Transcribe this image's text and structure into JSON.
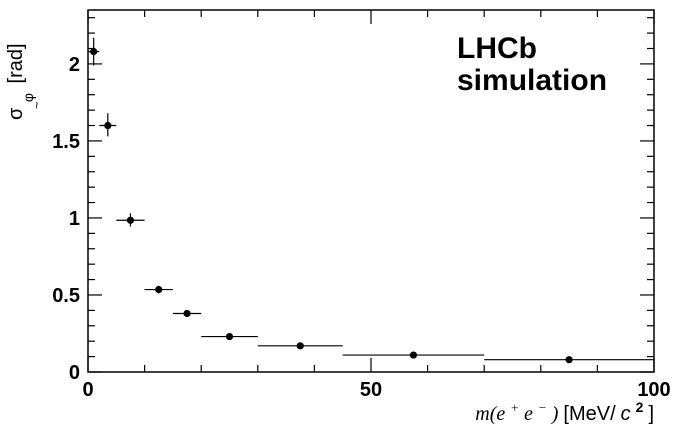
{
  "chart_data": {
    "type": "scatter",
    "annotation": [
      "LHCb",
      "simulation"
    ],
    "xlabel": {
      "prefix": "m(e",
      "plus": "+",
      "mid": "e",
      "minus": "−",
      "close": ")",
      "units_open": " [MeV/",
      "c": "c",
      "exp": "2",
      "units_close": "]"
    },
    "ylabel": {
      "sigma": "σ",
      "sub_tilde": "~",
      "sub_phi": "φ",
      "units": "[rad]"
    },
    "xlim": [
      0,
      100
    ],
    "ylim": [
      0,
      2.35
    ],
    "x_ticks": [
      0,
      50,
      100
    ],
    "y_ticks": [
      0,
      0.5,
      1,
      1.5,
      2
    ],
    "x_tick_labels": [
      "0",
      "50",
      "100"
    ],
    "y_tick_labels": [
      "0",
      "0.5",
      "1",
      "1.5",
      "2"
    ],
    "grid": false,
    "series": [
      {
        "points": [
          {
            "x": 1,
            "xlo": 0,
            "xhi": 2,
            "y": 2.08,
            "ylo": 1.99,
            "yhi": 2.17
          },
          {
            "x": 3.5,
            "xlo": 2,
            "xhi": 5,
            "y": 1.6,
            "ylo": 1.53,
            "yhi": 1.68
          },
          {
            "x": 7.5,
            "xlo": 5,
            "xhi": 10,
            "y": 0.985,
            "ylo": 0.945,
            "yhi": 1.03
          },
          {
            "x": 12.5,
            "xlo": 10,
            "xhi": 15,
            "y": 0.535,
            "ylo": 0.51,
            "yhi": 0.56
          },
          {
            "x": 17.5,
            "xlo": 15,
            "xhi": 20,
            "y": 0.38,
            "ylo": 0.365,
            "yhi": 0.395
          },
          {
            "x": 25,
            "xlo": 20,
            "xhi": 30,
            "y": 0.23,
            "ylo": 0.22,
            "yhi": 0.24
          },
          {
            "x": 37.5,
            "xlo": 30,
            "xhi": 45,
            "y": 0.17,
            "ylo": 0.163,
            "yhi": 0.177
          },
          {
            "x": 57.5,
            "xlo": 45,
            "xhi": 70,
            "y": 0.11,
            "ylo": 0.105,
            "yhi": 0.115
          },
          {
            "x": 85,
            "xlo": 70,
            "xhi": 100,
            "y": 0.08,
            "ylo": 0.076,
            "yhi": 0.084
          }
        ]
      }
    ]
  }
}
